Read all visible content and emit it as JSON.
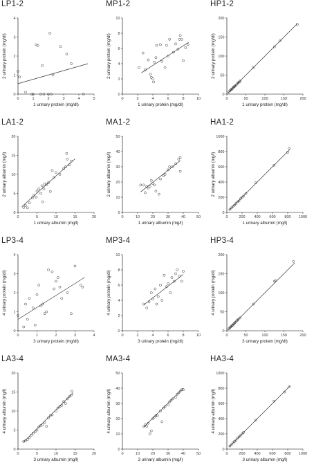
{
  "chart_data": [
    {
      "id": "LP1-2",
      "type": "scatter",
      "title": "LP1-2",
      "xlabel": "1 urinary protein (mg/dl)",
      "ylabel": "2 urinary protein (mg/dl)",
      "xlim": [
        0,
        5
      ],
      "ylim": [
        0,
        4
      ],
      "xticks": [
        0,
        1,
        2,
        3,
        4,
        5
      ],
      "yticks": [
        0,
        1,
        2,
        3,
        4
      ],
      "points": [
        [
          0,
          1.2
        ],
        [
          0.1,
          0.9
        ],
        [
          0.5,
          0.1
        ],
        [
          0.9,
          0
        ],
        [
          1.0,
          0
        ],
        [
          1.2,
          2.6
        ],
        [
          1.3,
          2.55
        ],
        [
          1.5,
          0
        ],
        [
          1.6,
          1.5
        ],
        [
          1.7,
          0
        ],
        [
          2.0,
          0
        ],
        [
          2.1,
          3.2
        ],
        [
          2.3,
          1.0
        ],
        [
          2.2,
          0
        ],
        [
          2.8,
          2.5
        ],
        [
          3.2,
          2.1
        ],
        [
          3.5,
          1.6
        ],
        [
          4.3,
          0
        ]
      ],
      "fit": [
        [
          0,
          0.55
        ],
        [
          4.6,
          1.6
        ]
      ]
    },
    {
      "id": "MP1-2",
      "type": "scatter",
      "title": "MP1-2",
      "xlabel": "1 urinary protein (mg/dl)",
      "ylabel": "2 urinary protein (mg/dl)",
      "xlim": [
        0,
        10
      ],
      "ylim": [
        0,
        10
      ],
      "xticks": [
        0,
        2,
        4,
        6,
        8,
        10
      ],
      "yticks": [
        0,
        2,
        4,
        6,
        8,
        10
      ],
      "points": [
        [
          2.2,
          3.5
        ],
        [
          2.7,
          5.4
        ],
        [
          3.0,
          3.2
        ],
        [
          3.4,
          4.5
        ],
        [
          3.7,
          2.6
        ],
        [
          3.8,
          2.2
        ],
        [
          4.0,
          2.0
        ],
        [
          4.1,
          1.6
        ],
        [
          4.2,
          4.2
        ],
        [
          4.4,
          4.8
        ],
        [
          4.5,
          6.4
        ],
        [
          5.0,
          6.5
        ],
        [
          5.2,
          4.3
        ],
        [
          5.6,
          3.5
        ],
        [
          5.8,
          6.4
        ],
        [
          6.0,
          5.0
        ],
        [
          6.2,
          7.2
        ],
        [
          6.7,
          5.5
        ],
        [
          7.0,
          6.6
        ],
        [
          7.3,
          5.9
        ],
        [
          7.5,
          7.2
        ],
        [
          7.6,
          7.7
        ],
        [
          7.8,
          7.2
        ],
        [
          8.0,
          4.4
        ],
        [
          8.3,
          6.1
        ],
        [
          8.6,
          6.5
        ]
      ],
      "fit": [
        [
          2.5,
          2.8
        ],
        [
          8.7,
          6.8
        ]
      ]
    },
    {
      "id": "HP1-2",
      "type": "scatter",
      "title": "HP1-2",
      "xlabel": "1 urinary protein (mg/dl)",
      "ylabel": "2 urinary protein (mg/dl)",
      "xlim": [
        0,
        200
      ],
      "ylim": [
        0,
        200
      ],
      "xticks": [
        0,
        50,
        100,
        150,
        200
      ],
      "yticks": [
        0,
        50,
        100,
        150,
        200
      ],
      "points": [
        [
          5,
          5
        ],
        [
          8,
          9
        ],
        [
          10,
          11
        ],
        [
          12,
          12
        ],
        [
          14,
          14
        ],
        [
          16,
          16
        ],
        [
          18,
          19
        ],
        [
          20,
          20
        ],
        [
          22,
          22
        ],
        [
          25,
          24
        ],
        [
          28,
          28
        ],
        [
          30,
          30
        ],
        [
          33,
          32
        ],
        [
          35,
          35
        ],
        [
          70,
          70
        ],
        [
          125,
          124
        ],
        [
          140,
          140
        ],
        [
          185,
          183
        ]
      ],
      "fit": [
        [
          3,
          3
        ],
        [
          186,
          186
        ]
      ]
    },
    {
      "id": "LA1-2",
      "type": "scatter",
      "title": "LA1-2",
      "xlabel": "1 urinary albumin (mg/l)",
      "ylabel": "2 urinary albumin (mg/l)",
      "xlim": [
        0,
        20
      ],
      "ylim": [
        0,
        20
      ],
      "xticks": [
        0,
        5,
        10,
        15,
        20
      ],
      "yticks": [
        0,
        5,
        10,
        15,
        20
      ],
      "points": [
        [
          1.5,
          1.3
        ],
        [
          2.0,
          1.8
        ],
        [
          2.5,
          1.2
        ],
        [
          3.0,
          2.5
        ],
        [
          3.8,
          3.8
        ],
        [
          4.2,
          4.5
        ],
        [
          4.8,
          4.0
        ],
        [
          5.0,
          5.6
        ],
        [
          5.5,
          6.2
        ],
        [
          6.0,
          5.0
        ],
        [
          6.3,
          7.0
        ],
        [
          6.5,
          2.8
        ],
        [
          6.8,
          6.2
        ],
        [
          7.0,
          7.5
        ],
        [
          7.5,
          7.3
        ],
        [
          8.0,
          7.8
        ],
        [
          8.5,
          5.5
        ],
        [
          9.0,
          11.0
        ],
        [
          9.5,
          9.2
        ],
        [
          10.0,
          10.5
        ],
        [
          11.0,
          10.0
        ],
        [
          12.0,
          11.5
        ],
        [
          12.5,
          12.0
        ],
        [
          13.0,
          14.0
        ],
        [
          13.5,
          12.5
        ],
        [
          14.0,
          13.5
        ],
        [
          12.8,
          15.5
        ]
      ],
      "fit": [
        [
          1,
          1.5
        ],
        [
          15,
          14.1
        ]
      ]
    },
    {
      "id": "MA1-2",
      "type": "scatter",
      "title": "MA1-2",
      "xlabel": "1 urinary albumin (mg/l)",
      "ylabel": "2 urinary albumin (mg/l)",
      "xlim": [
        0,
        50
      ],
      "ylim": [
        0,
        50
      ],
      "xticks": [
        0,
        10,
        20,
        30,
        40,
        50
      ],
      "yticks": [
        0,
        10,
        20,
        30,
        40,
        50
      ],
      "points": [
        [
          12,
          18
        ],
        [
          14,
          18
        ],
        [
          15,
          13
        ],
        [
          16,
          17
        ],
        [
          17,
          16
        ],
        [
          18,
          17
        ],
        [
          19,
          21
        ],
        [
          20,
          19
        ],
        [
          21,
          18
        ],
        [
          22,
          14
        ],
        [
          24,
          12
        ],
        [
          25,
          22
        ],
        [
          27,
          24
        ],
        [
          28,
          25
        ],
        [
          30,
          28
        ],
        [
          31,
          30
        ],
        [
          33,
          30
        ],
        [
          35,
          32
        ],
        [
          37,
          35
        ],
        [
          38,
          27
        ],
        [
          38,
          36
        ]
      ],
      "fit": [
        [
          12,
          13.5
        ],
        [
          38,
          34
        ]
      ]
    },
    {
      "id": "HA1-2",
      "type": "scatter",
      "title": "HA1-2",
      "xlabel": "1 urinary albumin (mg/l)",
      "ylabel": "2 urinary albumin (mg/l)",
      "xlim": [
        0,
        1000
      ],
      "ylim": [
        0,
        1000
      ],
      "xticks": [
        0,
        200,
        400,
        600,
        800,
        1000
      ],
      "yticks": [
        0,
        200,
        400,
        600,
        800,
        1000
      ],
      "points": [
        [
          40,
          40
        ],
        [
          60,
          60
        ],
        [
          80,
          80
        ],
        [
          100,
          95
        ],
        [
          120,
          120
        ],
        [
          140,
          140
        ],
        [
          160,
          150
        ],
        [
          180,
          180
        ],
        [
          200,
          200
        ],
        [
          220,
          215
        ],
        [
          250,
          250
        ],
        [
          380,
          390
        ],
        [
          620,
          620
        ],
        [
          800,
          790
        ],
        [
          820,
          840
        ]
      ],
      "fit": [
        [
          30,
          30
        ],
        [
          830,
          830
        ]
      ]
    },
    {
      "id": "LP3-4",
      "type": "scatter",
      "title": "LP3-4",
      "xlabel": "3 urinary protein (mg/dl)",
      "ylabel": "4 urinary protein (mg/dl)",
      "xlim": [
        0,
        4
      ],
      "ylim": [
        0,
        4
      ],
      "xticks": [
        0,
        1,
        2,
        3,
        4
      ],
      "yticks": [
        0,
        1,
        2,
        3,
        4
      ],
      "points": [
        [
          0,
          0.8
        ],
        [
          0.3,
          0.2
        ],
        [
          0.4,
          1.4
        ],
        [
          0.5,
          0.6
        ],
        [
          0.6,
          1.7
        ],
        [
          0.8,
          1.2
        ],
        [
          0.9,
          0.3
        ],
        [
          1.0,
          1.9
        ],
        [
          1.1,
          2.4
        ],
        [
          1.2,
          1.3
        ],
        [
          1.3,
          1.4
        ],
        [
          1.4,
          0.9
        ],
        [
          1.5,
          1.0
        ],
        [
          1.6,
          3.2
        ],
        [
          1.8,
          3.1
        ],
        [
          1.9,
          2.2
        ],
        [
          2.0,
          2.6
        ],
        [
          2.1,
          2.8
        ],
        [
          2.2,
          2.3
        ],
        [
          2.3,
          1.7
        ],
        [
          2.6,
          2.0
        ],
        [
          2.8,
          0.9
        ],
        [
          3.0,
          3.4
        ],
        [
          3.3,
          2.4
        ],
        [
          3.4,
          2.3
        ]
      ],
      "fit": [
        [
          0,
          0.6
        ],
        [
          3.5,
          2.8
        ]
      ]
    },
    {
      "id": "MP3-4",
      "type": "scatter",
      "title": "MP3-4",
      "xlabel": "3 urinary protein (mg/dl)",
      "ylabel": "4 urinary protein (mg/dl)",
      "xlim": [
        0,
        10
      ],
      "ylim": [
        0,
        10
      ],
      "xticks": [
        0,
        2,
        4,
        6,
        8,
        10
      ],
      "yticks": [
        0,
        2,
        4,
        6,
        8,
        10
      ],
      "points": [
        [
          2.8,
          3.5
        ],
        [
          3.2,
          3.0
        ],
        [
          3.5,
          3.8
        ],
        [
          3.8,
          5.0
        ],
        [
          4.0,
          4.2
        ],
        [
          4.3,
          5.5
        ],
        [
          4.5,
          3.5
        ],
        [
          4.7,
          4.5
        ],
        [
          5.0,
          6.0
        ],
        [
          5.2,
          4.0
        ],
        [
          5.5,
          7.3
        ],
        [
          5.8,
          5.8
        ],
        [
          6.0,
          6.2
        ],
        [
          6.3,
          5.0
        ],
        [
          6.5,
          7.0
        ],
        [
          6.8,
          6.5
        ],
        [
          7.0,
          7.5
        ],
        [
          7.2,
          8.0
        ],
        [
          7.5,
          7.2
        ],
        [
          7.8,
          6.5
        ],
        [
          8.0,
          7.8
        ]
      ],
      "fit": [
        [
          2.8,
          3.4
        ],
        [
          8.0,
          7.4
        ]
      ]
    },
    {
      "id": "HP3-4",
      "type": "scatter",
      "title": "HP3-4",
      "xlabel": "3 urinary protein (mg/dl)",
      "ylabel": "4 urinary protein (mg/dl)",
      "xlim": [
        0,
        200
      ],
      "ylim": [
        0,
        200
      ],
      "xticks": [
        0,
        50,
        100,
        150,
        200
      ],
      "yticks": [
        0,
        50,
        100,
        150,
        200
      ],
      "points": [
        [
          5,
          5
        ],
        [
          8,
          8
        ],
        [
          10,
          10
        ],
        [
          12,
          12
        ],
        [
          14,
          14
        ],
        [
          16,
          15
        ],
        [
          18,
          18
        ],
        [
          20,
          20
        ],
        [
          22,
          22
        ],
        [
          25,
          25
        ],
        [
          28,
          28
        ],
        [
          30,
          30
        ],
        [
          35,
          34
        ],
        [
          70,
          70
        ],
        [
          125,
          130
        ],
        [
          128,
          132
        ],
        [
          175,
          182
        ]
      ],
      "fit": [
        [
          3,
          3
        ],
        [
          178,
          178
        ]
      ]
    },
    {
      "id": "LA3-4",
      "type": "scatter",
      "title": "LA3-4",
      "xlabel": "3 urinary albumin (mg/l)",
      "ylabel": "4 urinary albumin (mg/l)",
      "xlim": [
        0,
        20
      ],
      "ylim": [
        0,
        20
      ],
      "xticks": [
        0,
        5,
        10,
        15,
        20
      ],
      "yticks": [
        0,
        5,
        10,
        15,
        20
      ],
      "points": [
        [
          1.5,
          2.0
        ],
        [
          2.0,
          2.2
        ],
        [
          2.5,
          2.5
        ],
        [
          3.0,
          3.0
        ],
        [
          3.5,
          3.6
        ],
        [
          4.0,
          4.2
        ],
        [
          4.5,
          4.5
        ],
        [
          5.0,
          5.0
        ],
        [
          5.5,
          5.8
        ],
        [
          6.0,
          6.2
        ],
        [
          6.5,
          6.5
        ],
        [
          7.0,
          7.0
        ],
        [
          7.5,
          6.0
        ],
        [
          8.0,
          8.2
        ],
        [
          8.5,
          8.8
        ],
        [
          9.0,
          9.0
        ],
        [
          10.0,
          10.0
        ],
        [
          10.5,
          10.8
        ],
        [
          11.0,
          11.2
        ],
        [
          11.5,
          11.5
        ],
        [
          12.0,
          12.5
        ],
        [
          12.5,
          12.0
        ],
        [
          13.0,
          13.2
        ],
        [
          13.5,
          13.8
        ],
        [
          14.0,
          14.2
        ],
        [
          14.2,
          15.2
        ]
      ],
      "fit": [
        [
          1.5,
          1.9
        ],
        [
          14.5,
          14.8
        ]
      ]
    },
    {
      "id": "MA3-4",
      "type": "scatter",
      "title": "MA3-4",
      "xlabel": "3 urinary albumin (mg/l)",
      "ylabel": "4 urinary albumin (mg/l)",
      "xlim": [
        0,
        50
      ],
      "ylim": [
        0,
        50
      ],
      "xticks": [
        0,
        10,
        20,
        30,
        40,
        50
      ],
      "yticks": [
        0,
        10,
        20,
        30,
        40,
        50
      ],
      "points": [
        [
          14,
          15
        ],
        [
          15,
          16
        ],
        [
          16,
          15
        ],
        [
          17,
          17
        ],
        [
          18,
          10
        ],
        [
          19,
          12
        ],
        [
          20,
          20
        ],
        [
          21,
          21
        ],
        [
          22,
          22
        ],
        [
          23,
          22
        ],
        [
          25,
          25
        ],
        [
          26,
          18
        ],
        [
          27,
          27
        ],
        [
          28,
          28
        ],
        [
          30,
          29
        ],
        [
          31,
          31
        ],
        [
          32,
          32
        ],
        [
          33,
          33
        ],
        [
          35,
          34
        ],
        [
          36,
          36
        ],
        [
          37,
          37
        ],
        [
          38,
          38
        ],
        [
          39,
          39
        ],
        [
          40,
          39
        ]
      ],
      "fit": [
        [
          14,
          14.5
        ],
        [
          40,
          40
        ]
      ]
    },
    {
      "id": "HA3-4",
      "type": "scatter",
      "title": "HA3-4",
      "xlabel": "3 urinary albumin (mg/l)",
      "ylabel": "4 urinary albumin (mg/l)",
      "xlim": [
        0,
        1000
      ],
      "ylim": [
        0,
        1000
      ],
      "xticks": [
        0,
        200,
        400,
        600,
        800,
        1000
      ],
      "yticks": [
        0,
        200,
        400,
        600,
        800,
        1000
      ],
      "points": [
        [
          40,
          40
        ],
        [
          60,
          60
        ],
        [
          80,
          80
        ],
        [
          100,
          100
        ],
        [
          120,
          115
        ],
        [
          140,
          145
        ],
        [
          160,
          160
        ],
        [
          180,
          180
        ],
        [
          200,
          200
        ],
        [
          220,
          220
        ],
        [
          380,
          380
        ],
        [
          620,
          630
        ],
        [
          760,
          750
        ],
        [
          820,
          820
        ]
      ],
      "fit": [
        [
          30,
          30
        ],
        [
          830,
          830
        ]
      ]
    }
  ]
}
